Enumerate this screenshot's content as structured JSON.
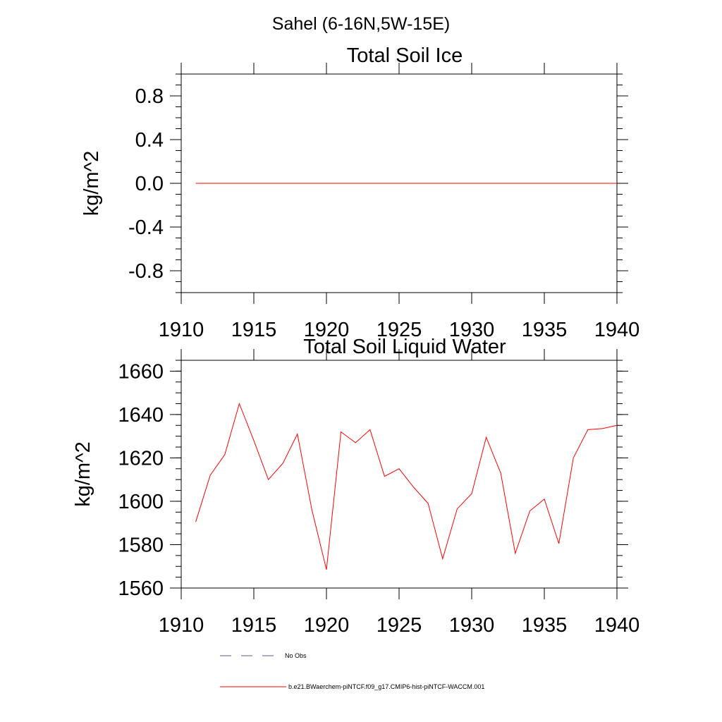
{
  "figure": {
    "suptitle": "Sahel (6-16N,5W-15E)"
  },
  "legend": {
    "items": [
      {
        "label": "No Obs",
        "color": "#5a5a9a",
        "dash": true
      },
      {
        "label": "b.e21.BWaerchem-piNTCF.f09_g17.CMIP6-hist-piNTCF-WACCM.001",
        "color": "#ff0000",
        "dash": false
      }
    ]
  },
  "chart_data": [
    {
      "type": "line",
      "title": "Total Soil Ice",
      "xlabel": "",
      "ylabel": "kg/m^2",
      "xlim": [
        1910,
        1940
      ],
      "ylim": [
        -1.0,
        1.0
      ],
      "xticks": [
        1910,
        1915,
        1920,
        1925,
        1930,
        1935,
        1940
      ],
      "xtick_labels": [
        "1910",
        "1915",
        "1920",
        "1925",
        "1930",
        "1935",
        "1940"
      ],
      "yticks": [
        0.8,
        0.4,
        0.0,
        -0.4,
        -0.8
      ],
      "ytick_labels": [
        "0.8",
        "0.4",
        "0.0",
        "-0.4",
        "-0.8"
      ],
      "y_minor_step": 0.1,
      "grid": false,
      "series": [
        {
          "color": "#ff0000",
          "x": [
            1911,
            1912,
            1913,
            1914,
            1915,
            1916,
            1917,
            1918,
            1919,
            1920,
            1921,
            1922,
            1923,
            1924,
            1925,
            1926,
            1927,
            1928,
            1929,
            1930,
            1931,
            1932,
            1933,
            1934,
            1935,
            1936,
            1937,
            1938,
            1939,
            1940
          ],
          "values": [
            0,
            0,
            0,
            0,
            0,
            0,
            0,
            0,
            0,
            0,
            0,
            0,
            0,
            0,
            0,
            0,
            0,
            0,
            0,
            0,
            0,
            0,
            0,
            0,
            0,
            0,
            0,
            0,
            0,
            0
          ]
        }
      ]
    },
    {
      "type": "line",
      "title": "Total Soil Liquid Water",
      "xlabel": "",
      "ylabel": "kg/m^2",
      "xlim": [
        1910,
        1940
      ],
      "ylim": [
        1560,
        1665
      ],
      "xticks": [
        1910,
        1915,
        1920,
        1925,
        1930,
        1935,
        1940
      ],
      "xtick_labels": [
        "1910",
        "1915",
        "1920",
        "1925",
        "1930",
        "1935",
        "1940"
      ],
      "yticks": [
        1660,
        1640,
        1620,
        1600,
        1580,
        1560
      ],
      "ytick_labels": [
        "1660",
        "1640",
        "1620",
        "1600",
        "1580",
        "1560"
      ],
      "y_minor_step": 5,
      "grid": false,
      "series": [
        {
          "color": "#ff0000",
          "x": [
            1911,
            1912,
            1913,
            1914,
            1915,
            1916,
            1917,
            1918,
            1919,
            1920,
            1921,
            1922,
            1923,
            1924,
            1925,
            1926,
            1927,
            1928,
            1929,
            1930,
            1931,
            1932,
            1933,
            1934,
            1935,
            1936,
            1937,
            1938,
            1939,
            1940
          ],
          "values": [
            1590.5,
            1612,
            1621.5,
            1645,
            1628,
            1610,
            1617.5,
            1631,
            1596,
            1568.5,
            1632,
            1627,
            1633,
            1611.5,
            1615,
            1606.5,
            1599,
            1573.5,
            1596.5,
            1603.5,
            1629.5,
            1613,
            1576,
            1595.5,
            1601,
            1580.5,
            1620,
            1633,
            1633.5,
            1635
          ]
        }
      ]
    }
  ]
}
